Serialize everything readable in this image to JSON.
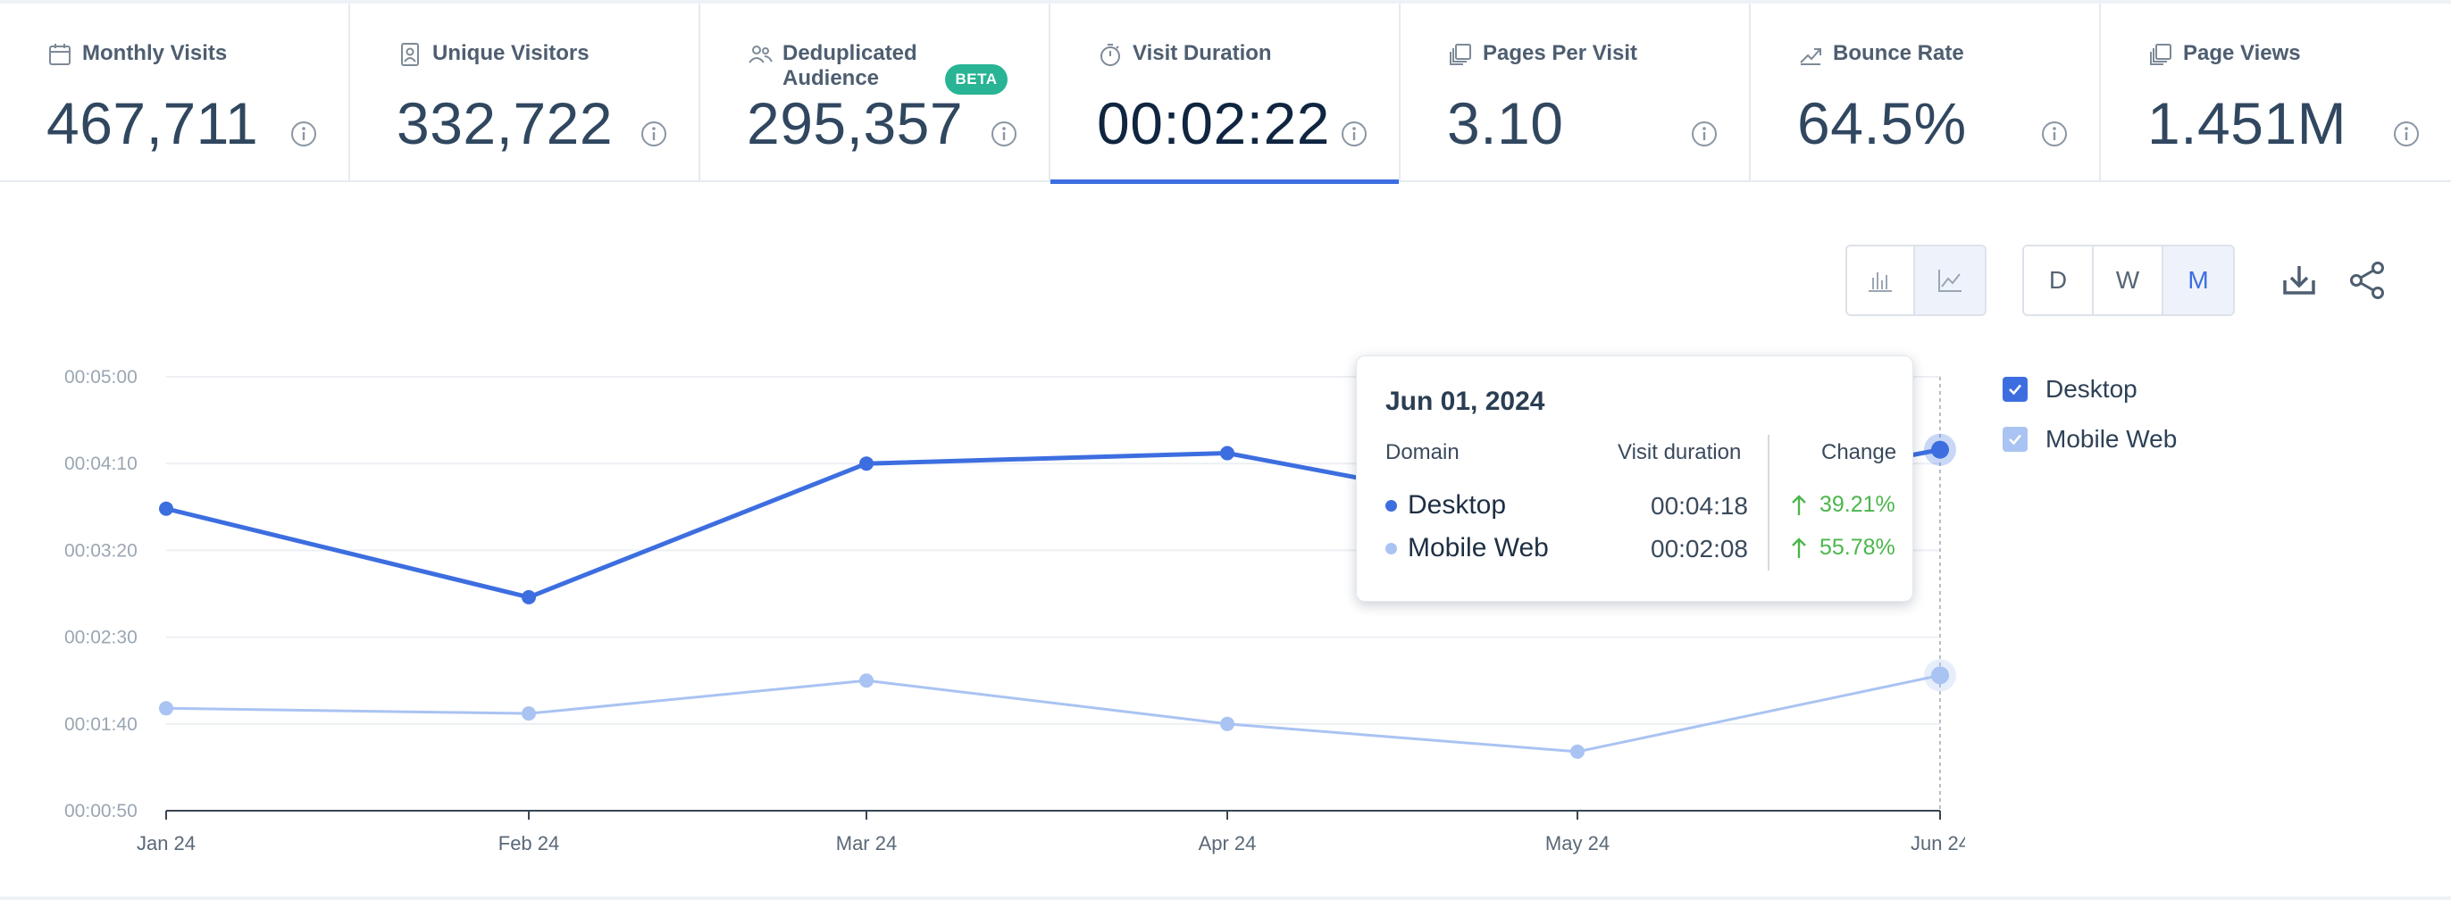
{
  "metrics": [
    {
      "label": "Monthly Visits",
      "value": "467,711",
      "icon": "calendar-icon"
    },
    {
      "label": "Unique Visitors",
      "value": "332,722",
      "icon": "id-badge-icon"
    },
    {
      "label": "Deduplicated Audience",
      "value": "295,357",
      "icon": "users-icon",
      "badge": "BETA"
    },
    {
      "label": "Visit Duration",
      "value": "00:02:22",
      "icon": "stopwatch-icon",
      "active": true
    },
    {
      "label": "Pages Per Visit",
      "value": "3.10",
      "icon": "pages-icon"
    },
    {
      "label": "Bounce Rate",
      "value": "64.5%",
      "icon": "trend-icon"
    },
    {
      "label": "Page Views",
      "value": "1.451M",
      "icon": "pages-icon"
    }
  ],
  "toolbar": {
    "granularity": [
      "D",
      "W",
      "M"
    ],
    "selected_granularity": "M",
    "chart_types": [
      "bar-chart-icon",
      "line-chart-icon"
    ],
    "selected_chart_type": "line-chart-icon"
  },
  "legend": [
    {
      "label": "Desktop",
      "color": "#3d6ee0",
      "checked": true
    },
    {
      "label": "Mobile Web",
      "color": "#a9c3f2",
      "checked": true
    }
  ],
  "tooltip": {
    "title": "Jun 01, 2024",
    "headers": {
      "domain": "Domain",
      "duration": "Visit duration",
      "change": "Change"
    },
    "rows": [
      {
        "name": "Desktop",
        "duration": "00:04:18",
        "change": "39.21%",
        "color": "#3d6ee0"
      },
      {
        "name": "Mobile Web",
        "duration": "00:02:08",
        "change": "55.78%",
        "color": "#a9c3f2"
      }
    ]
  },
  "chart_data": {
    "type": "line",
    "x": [
      "Jan 24",
      "Feb 24",
      "Mar 24",
      "Apr 24",
      "May 24",
      "Jun 24"
    ],
    "y_ticks": [
      "00:00:50",
      "00:01:40",
      "00:02:30",
      "00:03:20",
      "00:04:10",
      "00:05:00"
    ],
    "y_unit": "seconds",
    "ylim": [
      50,
      300
    ],
    "series": [
      {
        "name": "Desktop",
        "color": "#3d6ee0",
        "values": [
          224,
          173,
          250,
          256,
          218,
          258
        ]
      },
      {
        "name": "Mobile Web",
        "color": "#a9c3f2",
        "values": [
          109,
          106,
          125,
          100,
          84,
          128
        ]
      }
    ],
    "grid": true,
    "legend": "right"
  }
}
